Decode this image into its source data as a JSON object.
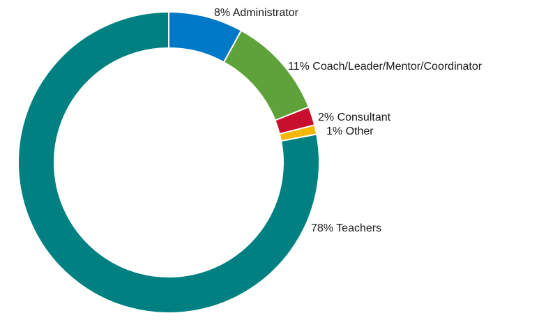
{
  "chart_data": {
    "type": "pie",
    "variant": "donut",
    "title": "",
    "slices": [
      {
        "label": "8% Administrator",
        "value": 8,
        "color": "#0078c8"
      },
      {
        "label": "11% Coach/Leader/Mentor/Coordinator",
        "value": 11,
        "color": "#5ea23a"
      },
      {
        "label": "2% Consultant",
        "value": 2,
        "color": "#c8102e"
      },
      {
        "label": "1% Other",
        "value": 1,
        "color": "#f6b700"
      },
      {
        "label": "78% Teachers",
        "value": 78,
        "color": "#008080"
      }
    ],
    "start_angle": "12 o'clock",
    "direction": "clockwise",
    "legend": "none (labels beside slices)"
  }
}
